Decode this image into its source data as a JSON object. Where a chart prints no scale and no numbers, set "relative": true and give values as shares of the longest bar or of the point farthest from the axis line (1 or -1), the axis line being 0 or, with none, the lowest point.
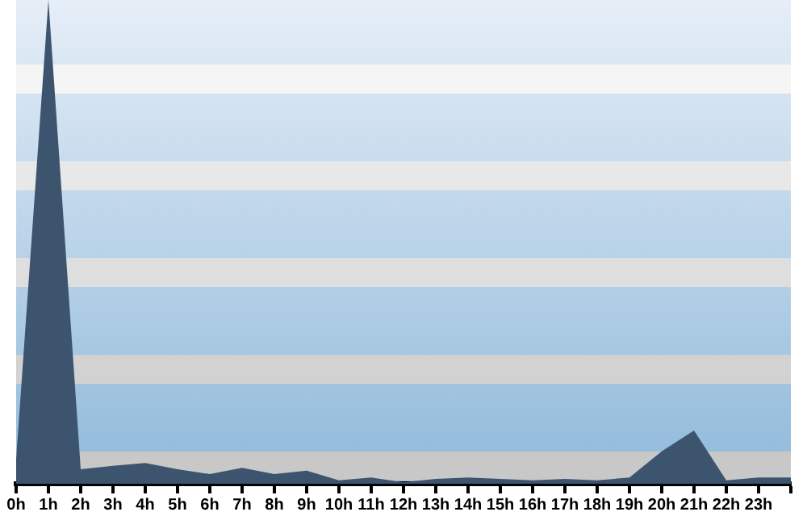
{
  "chart_data": {
    "type": "area",
    "relative": true,
    "categories": [
      "0h",
      "1h",
      "2h",
      "3h",
      "4h",
      "5h",
      "6h",
      "7h",
      "8h",
      "9h",
      "10h",
      "11h",
      "12h",
      "13h",
      "14h",
      "15h",
      "16h",
      "17h",
      "18h",
      "19h",
      "20h",
      "21h",
      "22h",
      "23h",
      null
    ],
    "series": [
      {
        "color": "#3d546e",
        "values": [
          0.05,
          1,
          0.03,
          0.037,
          0.043,
          0.03,
          0.02,
          0.033,
          0.02,
          0.027,
          0.007,
          0.013,
          0.003,
          0.01,
          0.013,
          0.01,
          0.007,
          0.01,
          0.007,
          0.013,
          0.067,
          0.11,
          0.007,
          0.013,
          0.013
        ]
      }
    ],
    "grid": false,
    "legend": false,
    "marker": "none"
  }
}
